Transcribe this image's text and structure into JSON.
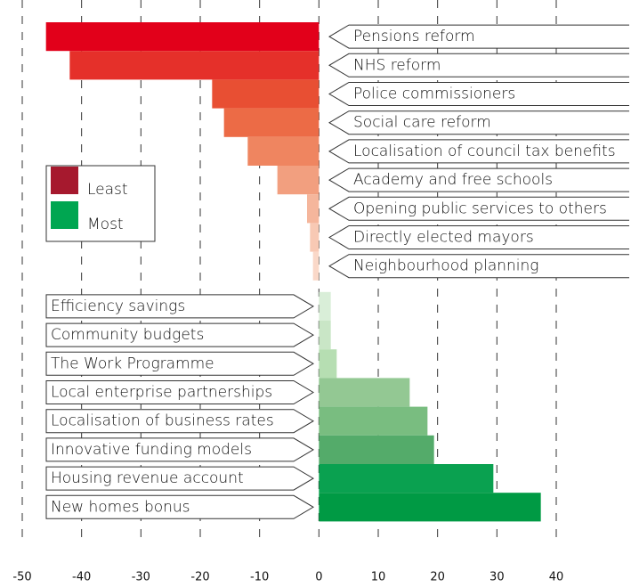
{
  "chart_data": {
    "type": "bar",
    "orientation": "horizontal",
    "categories": [
      "Pensions reform",
      "NHS reform",
      "Police commissioners",
      "Social care reform",
      "Localisation of council tax benefits",
      "Academy and free schools",
      "Opening public services to others",
      "Directly elected mayors",
      "Neighbourhood planning",
      "Efficiency savings",
      "Community budgets",
      "The Work Programme",
      "Local enterprise partnerships",
      "Localisation of business rates",
      "Innovative funding models",
      "Housing revenue account",
      "New homes bonus"
    ],
    "values": [
      -46,
      -42,
      -18,
      -16,
      -12,
      -7,
      -2,
      -1.5,
      -1,
      2,
      2,
      3,
      15.3,
      18.3,
      19.4,
      29.4,
      37.4
    ],
    "colors": [
      "#e2001a",
      "#e5302a",
      "#e84f33",
      "#ec6b46",
      "#ef8560",
      "#f29f7f",
      "#f5b69c",
      "#f8c9b4",
      "#fad8c8",
      "#d9eed8",
      "#c9e6c6",
      "#b6deb2",
      "#93c893",
      "#79bd80",
      "#54ab6a",
      "#0aa150",
      "#009a44"
    ],
    "legend": [
      {
        "name": "Least",
        "color": "#a6192e"
      },
      {
        "name": "Most",
        "color": "#00a651"
      }
    ],
    "xlim": [
      -50,
      40
    ],
    "xticks": [
      -50,
      -40,
      -30,
      -20,
      -10,
      0,
      10,
      20,
      30,
      40
    ],
    "grid": true
  }
}
